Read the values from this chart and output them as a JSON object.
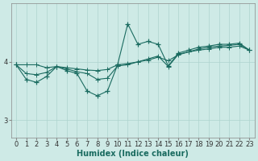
{
  "title": "",
  "xlabel": "Humidex (Indice chaleur)",
  "ylabel": "",
  "bg_color": "#ceeae6",
  "line_color": "#1a6b60",
  "grid_color": "#aed4cf",
  "yticks": [
    3,
    4
  ],
  "ylim": [
    2.7,
    5.0
  ],
  "xlim": [
    -0.5,
    23.5
  ],
  "xticks": [
    0,
    1,
    2,
    3,
    4,
    5,
    6,
    7,
    8,
    9,
    10,
    11,
    12,
    13,
    14,
    15,
    16,
    17,
    18,
    19,
    20,
    21,
    22,
    23
  ],
  "series1_x": [
    0,
    1,
    2,
    3,
    4,
    5,
    6,
    7,
    8,
    9,
    10,
    11,
    12,
    13,
    14,
    15,
    16,
    17,
    18,
    19,
    20,
    21,
    22,
    23
  ],
  "series1_y": [
    3.95,
    3.95,
    3.95,
    3.9,
    3.92,
    3.9,
    3.88,
    3.86,
    3.85,
    3.87,
    3.95,
    3.97,
    4.0,
    4.03,
    4.08,
    4.02,
    4.12,
    4.17,
    4.2,
    4.22,
    4.25,
    4.25,
    4.27,
    4.2
  ],
  "series2_x": [
    0,
    1,
    2,
    3,
    4,
    5,
    6,
    7,
    8,
    9,
    10,
    11,
    12,
    13,
    14,
    15,
    16,
    17,
    18,
    19,
    20,
    21,
    22,
    23
  ],
  "series2_y": [
    3.95,
    3.8,
    3.78,
    3.82,
    3.92,
    3.88,
    3.83,
    3.8,
    3.7,
    3.72,
    3.93,
    3.95,
    4.0,
    4.05,
    4.1,
    3.92,
    4.13,
    4.17,
    4.22,
    4.25,
    4.27,
    4.28,
    4.3,
    4.2
  ],
  "series3_x": [
    0,
    1,
    2,
    3,
    4,
    5,
    6,
    7,
    8,
    9,
    10,
    11,
    12,
    13,
    14,
    15,
    16,
    17,
    18,
    19,
    20,
    21,
    22,
    23
  ],
  "series3_y": [
    3.95,
    3.7,
    3.65,
    3.75,
    3.92,
    3.85,
    3.8,
    3.5,
    3.42,
    3.5,
    3.95,
    4.65,
    4.3,
    4.35,
    4.3,
    3.93,
    4.15,
    4.2,
    4.25,
    4.27,
    4.3,
    4.3,
    4.32,
    4.2
  ],
  "marker_size": 3,
  "linewidth": 0.8,
  "tick_fontsize": 6.0,
  "label_fontsize": 7.0
}
